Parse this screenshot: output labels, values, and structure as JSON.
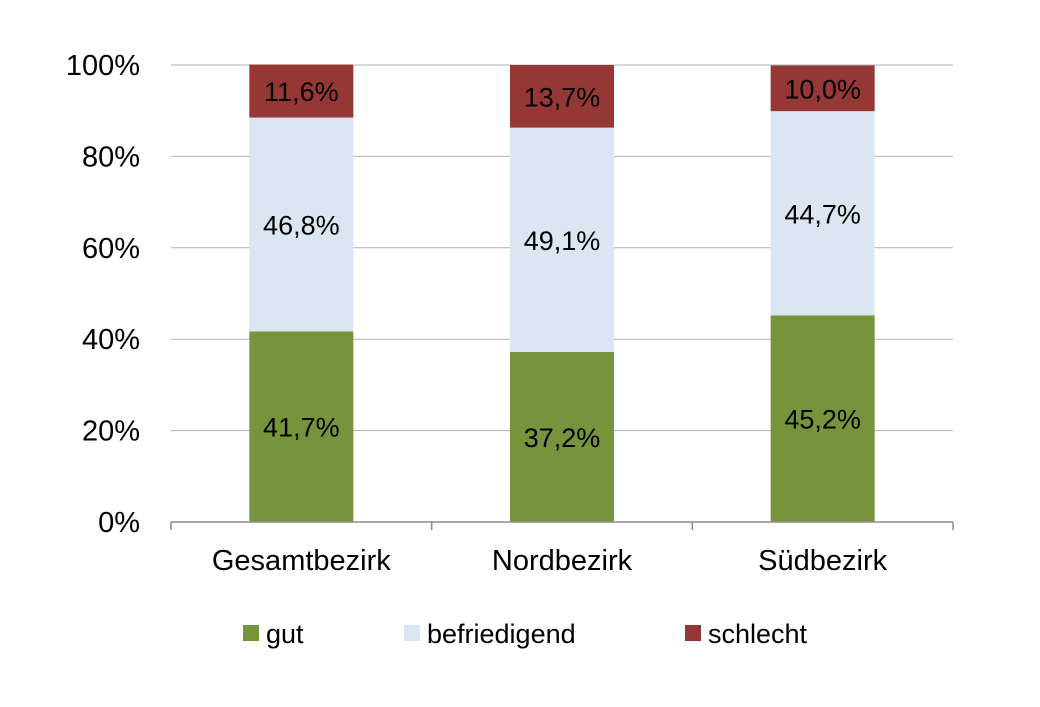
{
  "chart_data": {
    "type": "bar",
    "stacked": true,
    "title": "",
    "xlabel": "",
    "ylabel": "",
    "ylim": [
      0,
      100
    ],
    "yticks": [
      "0%",
      "20%",
      "40%",
      "60%",
      "80%",
      "100%"
    ],
    "grid": true,
    "legend_position": "bottom",
    "categories": [
      "Gesamtbezirk",
      "Nordbezirk",
      "Südbezirk"
    ],
    "series": [
      {
        "name": "gut",
        "color": "#77933c",
        "values": [
          41.7,
          37.2,
          45.2
        ],
        "labels": [
          "41,7%",
          "37,2%",
          "45,2%"
        ]
      },
      {
        "name": "befriedigend",
        "color": "#dce6f2",
        "values": [
          46.8,
          49.1,
          44.7
        ],
        "labels": [
          "46,8%",
          "49,1%",
          "44,7%"
        ]
      },
      {
        "name": "schlecht",
        "color": "#953735",
        "values": [
          11.6,
          13.7,
          10.0
        ],
        "labels": [
          "11,6%",
          "13,7%",
          "10,0%"
        ]
      }
    ]
  }
}
